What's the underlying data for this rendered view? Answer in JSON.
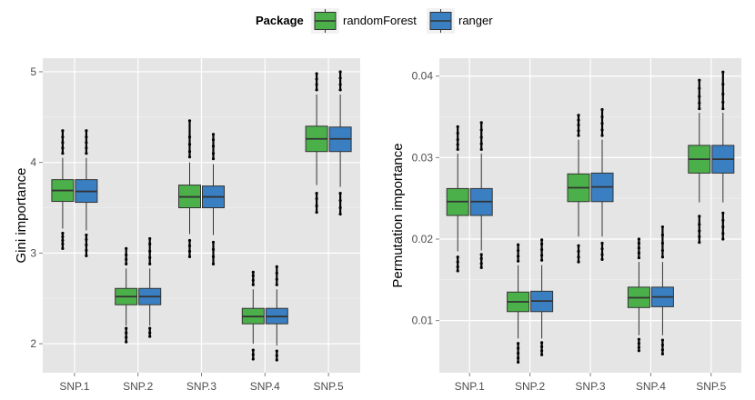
{
  "legend": {
    "title": "Package",
    "items": [
      {
        "label": "randomForest",
        "color": "#4bb04a"
      },
      {
        "label": "ranger",
        "color": "#3a7fc1"
      }
    ]
  },
  "chart_data": [
    {
      "type": "boxplot",
      "ylabel": "Gini importance",
      "xlabel": "",
      "categories": [
        "SNP.1",
        "SNP.2",
        "SNP.3",
        "SNP.4",
        "SNP.5"
      ],
      "ylim": [
        1.68,
        5.15
      ],
      "yticks": [
        2,
        3,
        4,
        5
      ],
      "ytick_labels": [
        "2",
        "3",
        "4",
        "5"
      ],
      "series": [
        {
          "name": "randomForest",
          "boxes": [
            {
              "whisker_low": 3.27,
              "q1": 3.57,
              "median": 3.69,
              "q3": 3.81,
              "whisker_high": 4.05,
              "outliers": [
                3.05,
                3.1,
                3.14,
                3.18,
                3.22,
                4.1,
                4.16,
                4.22,
                4.28,
                4.35
              ]
            },
            {
              "whisker_low": 2.2,
              "q1": 2.43,
              "median": 2.52,
              "q3": 2.61,
              "whisker_high": 2.83,
              "outliers": [
                2.02,
                2.07,
                2.12,
                2.17,
                2.88,
                2.93,
                2.98,
                3.05
              ]
            },
            {
              "whisker_low": 3.21,
              "q1": 3.5,
              "median": 3.62,
              "q3": 3.75,
              "whisker_high": 4.0,
              "outliers": [
                2.96,
                3.02,
                3.08,
                3.14,
                4.06,
                4.12,
                4.2,
                4.28,
                4.46
              ]
            },
            {
              "whisker_low": 2.0,
              "q1": 2.22,
              "median": 2.3,
              "q3": 2.39,
              "whisker_high": 2.6,
              "outliers": [
                1.83,
                1.88,
                1.93,
                2.65,
                2.7,
                2.75,
                2.79
              ]
            },
            {
              "whisker_low": 3.75,
              "q1": 4.12,
              "median": 4.26,
              "q3": 4.4,
              "whisker_high": 4.75,
              "outliers": [
                3.45,
                3.52,
                3.6,
                3.66,
                4.8,
                4.86,
                4.92,
                4.98
              ]
            }
          ]
        },
        {
          "name": "ranger",
          "boxes": [
            {
              "whisker_low": 3.25,
              "q1": 3.56,
              "median": 3.68,
              "q3": 3.81,
              "whisker_high": 4.05,
              "outliers": [
                2.97,
                3.03,
                3.09,
                3.15,
                3.2,
                4.1,
                4.16,
                4.22,
                4.28,
                4.35
              ]
            },
            {
              "whisker_low": 2.2,
              "q1": 2.43,
              "median": 2.52,
              "q3": 2.61,
              "whisker_high": 2.83,
              "outliers": [
                2.08,
                2.12,
                2.17,
                2.88,
                2.95,
                3.02,
                3.1,
                3.16
              ]
            },
            {
              "whisker_low": 3.2,
              "q1": 3.5,
              "median": 3.62,
              "q3": 3.74,
              "whisker_high": 3.98,
              "outliers": [
                2.88,
                2.96,
                3.04,
                3.12,
                4.04,
                4.1,
                4.18,
                4.25,
                4.31
              ]
            },
            {
              "whisker_low": 1.98,
              "q1": 2.22,
              "median": 2.3,
              "q3": 2.39,
              "whisker_high": 2.6,
              "outliers": [
                1.82,
                1.87,
                1.92,
                2.65,
                2.71,
                2.78,
                2.85
              ]
            },
            {
              "whisker_low": 3.73,
              "q1": 4.12,
              "median": 4.26,
              "q3": 4.39,
              "whisker_high": 4.75,
              "outliers": [
                3.43,
                3.5,
                3.58,
                3.66,
                4.8,
                4.86,
                4.93,
                5.0
              ]
            }
          ]
        }
      ]
    },
    {
      "type": "boxplot",
      "ylabel": "Permutation importance",
      "xlabel": "",
      "categories": [
        "SNP.1",
        "SNP.2",
        "SNP.3",
        "SNP.4",
        "SNP.5"
      ],
      "ylim": [
        0.0036,
        0.0422
      ],
      "yticks": [
        0.01,
        0.02,
        0.03,
        0.04
      ],
      "ytick_labels": [
        "0.01",
        "0.02",
        "0.03",
        "0.04"
      ],
      "series": [
        {
          "name": "randomForest",
          "boxes": [
            {
              "whisker_low": 0.0185,
              "q1": 0.0229,
              "median": 0.0246,
              "q3": 0.0262,
              "whisker_high": 0.0305,
              "outliers": [
                0.0161,
                0.0166,
                0.0172,
                0.0178,
                0.031,
                0.0316,
                0.0322,
                0.033,
                0.0338
              ]
            },
            {
              "whisker_low": 0.0078,
              "q1": 0.0111,
              "median": 0.0123,
              "q3": 0.0135,
              "whisker_high": 0.0168,
              "outliers": [
                0.0049,
                0.0054,
                0.006,
                0.0066,
                0.0072,
                0.0173,
                0.0179,
                0.0186,
                0.0193
              ]
            },
            {
              "whisker_low": 0.0203,
              "q1": 0.0246,
              "median": 0.0263,
              "q3": 0.028,
              "whisker_high": 0.0322,
              "outliers": [
                0.0172,
                0.0178,
                0.0185,
                0.0192,
                0.0327,
                0.0333,
                0.034,
                0.0346,
                0.0352
              ]
            },
            {
              "whisker_low": 0.0082,
              "q1": 0.0116,
              "median": 0.0128,
              "q3": 0.0141,
              "whisker_high": 0.0172,
              "outliers": [
                0.0063,
                0.0067,
                0.0072,
                0.0077,
                0.0177,
                0.0183,
                0.0189,
                0.0195,
                0.02
              ]
            },
            {
              "whisker_low": 0.0245,
              "q1": 0.0281,
              "median": 0.0298,
              "q3": 0.0315,
              "whisker_high": 0.0355,
              "outliers": [
                0.0196,
                0.0203,
                0.021,
                0.0218,
                0.0228,
                0.036,
                0.0367,
                0.0375,
                0.0385,
                0.0395
              ]
            }
          ]
        },
        {
          "name": "ranger",
          "boxes": [
            {
              "whisker_low": 0.0186,
              "q1": 0.0229,
              "median": 0.0246,
              "q3": 0.0262,
              "whisker_high": 0.0305,
              "outliers": [
                0.0165,
                0.017,
                0.0176,
                0.0181,
                0.031,
                0.0317,
                0.0325,
                0.0334,
                0.0343
              ]
            },
            {
              "whisker_low": 0.0078,
              "q1": 0.0111,
              "median": 0.0124,
              "q3": 0.0136,
              "whisker_high": 0.0168,
              "outliers": [
                0.0058,
                0.0063,
                0.0068,
                0.0073,
                0.0174,
                0.018,
                0.0187,
                0.0194,
                0.0199
              ]
            },
            {
              "whisker_low": 0.0203,
              "q1": 0.0246,
              "median": 0.0264,
              "q3": 0.0281,
              "whisker_high": 0.0322,
              "outliers": [
                0.0175,
                0.0181,
                0.0188,
                0.0195,
                0.0327,
                0.0334,
                0.0342,
                0.035,
                0.0359
              ]
            },
            {
              "whisker_low": 0.0082,
              "q1": 0.0117,
              "median": 0.0129,
              "q3": 0.0141,
              "whisker_high": 0.0172,
              "outliers": [
                0.0059,
                0.0064,
                0.007,
                0.0076,
                0.0178,
                0.0186,
                0.0195,
                0.0205,
                0.0215
              ]
            },
            {
              "whisker_low": 0.0245,
              "q1": 0.0281,
              "median": 0.0298,
              "q3": 0.0315,
              "whisker_high": 0.0355,
              "outliers": [
                0.02,
                0.0207,
                0.0215,
                0.0223,
                0.0232,
                0.036,
                0.0368,
                0.0378,
                0.039,
                0.0405
              ]
            }
          ]
        }
      ]
    }
  ]
}
